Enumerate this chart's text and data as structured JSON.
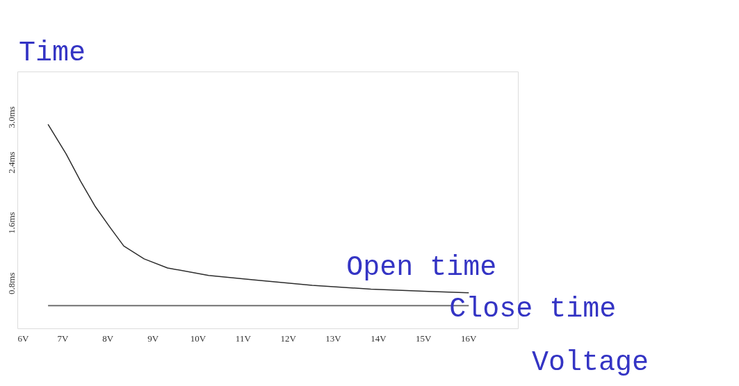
{
  "chart_data": {
    "type": "line",
    "xlabel": "Voltage",
    "ylabel": "Time",
    "xlim": [
      6,
      17.1
    ],
    "ylim": [
      0.2,
      3.6
    ],
    "xticks": [
      {
        "value": 6,
        "label": "6V"
      },
      {
        "value": 7,
        "label": "7V"
      },
      {
        "value": 8,
        "label": "8V"
      },
      {
        "value": 9,
        "label": "9V"
      },
      {
        "value": 10,
        "label": "10V"
      },
      {
        "value": 11,
        "label": "11V"
      },
      {
        "value": 12,
        "label": "12V"
      },
      {
        "value": 13,
        "label": "13V"
      },
      {
        "value": 14,
        "label": "14V"
      },
      {
        "value": 15,
        "label": "15V"
      },
      {
        "value": 16,
        "label": "16V"
      }
    ],
    "yticks": [
      {
        "value": 0.8,
        "label": "0.8ms"
      },
      {
        "value": 1.6,
        "label": "1.6ms"
      },
      {
        "value": 2.4,
        "label": "2.4ms"
      },
      {
        "value": 3.0,
        "label": "3.0ms"
      }
    ],
    "grid": false,
    "marker": "none",
    "line_style": "solid",
    "series": [
      {
        "name": "Open time",
        "color": "#2b2b2b",
        "x": [
          6.68,
          7.08,
          7.4,
          7.73,
          8.05,
          8.36,
          8.81,
          9.33,
          10.24,
          11.26,
          12.54,
          13.84,
          15.12,
          16.01
        ],
        "values": [
          2.9,
          2.51,
          2.15,
          1.81,
          1.54,
          1.29,
          1.12,
          1.0,
          0.9,
          0.84,
          0.77,
          0.72,
          0.69,
          0.67
        ]
      },
      {
        "name": "Close time",
        "color": "#707070",
        "x": [
          6.68,
          16.01
        ],
        "values": [
          0.5,
          0.5
        ]
      }
    ]
  }
}
